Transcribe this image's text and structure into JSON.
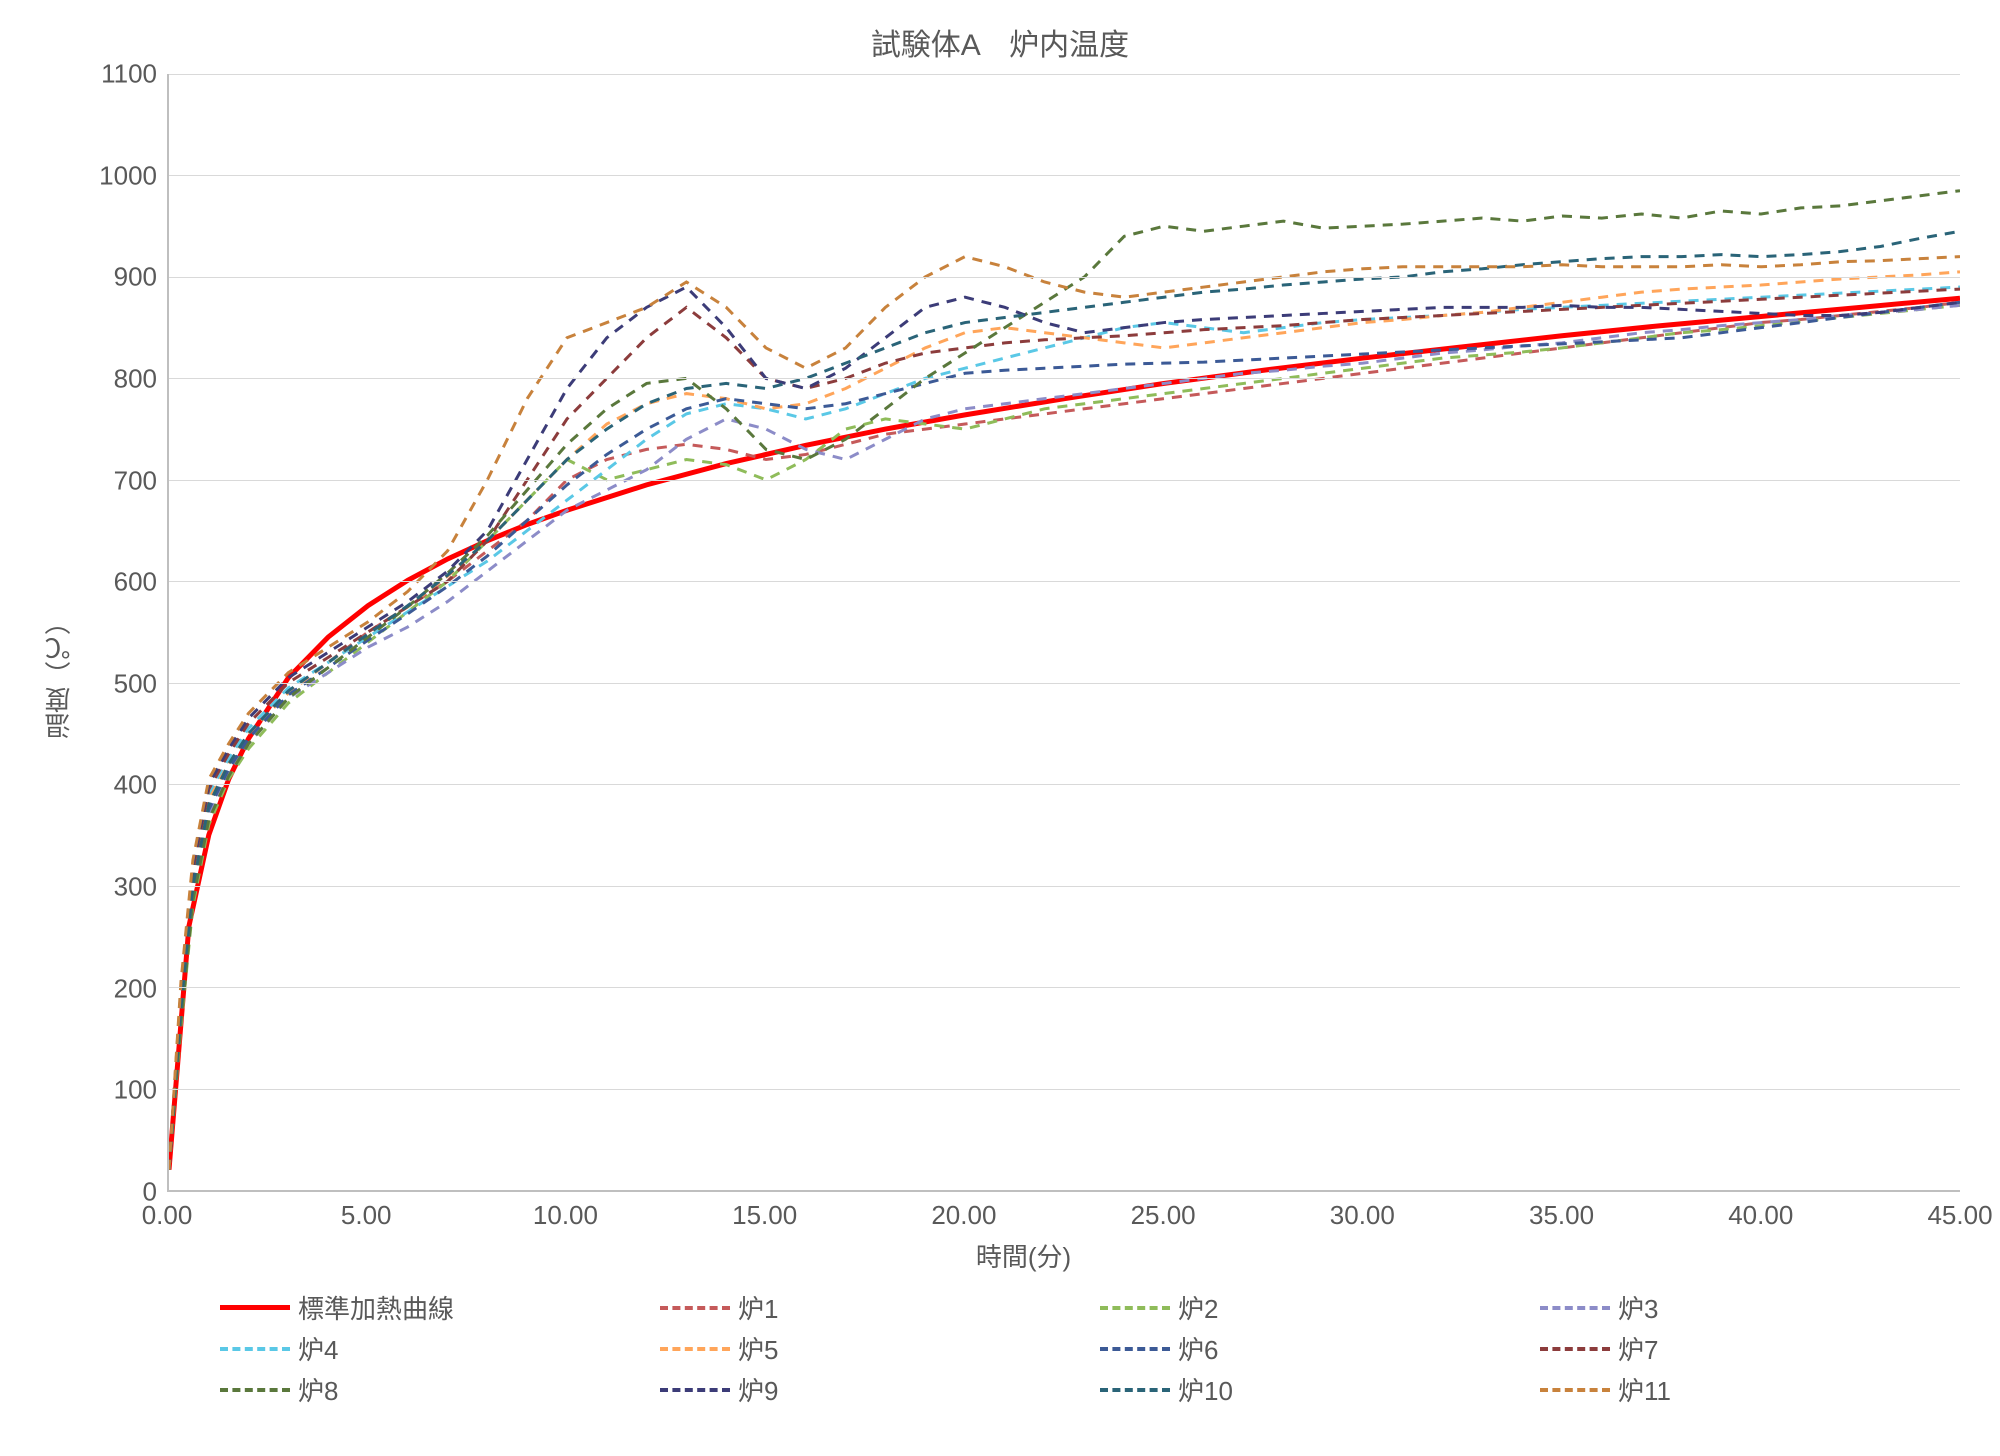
{
  "chart": {
    "type": "line",
    "title": "試験体A　炉内温度",
    "xlabel": "時間(分)",
    "ylabel": "温度（℃）",
    "xlim": [
      0,
      45
    ],
    "ylim": [
      0,
      1100
    ],
    "xtick_step": 5,
    "ytick_step": 100,
    "xtick_format": "fixed2",
    "background_color": "#ffffff",
    "grid_color": "#d9d9d9",
    "axis_color": "#bfbfbf",
    "title_fontsize": 30,
    "label_fontsize": 26,
    "tick_fontsize": 26,
    "text_color": "#595959",
    "series": [
      {
        "name": "標準加熱曲線",
        "color": "#ff0000",
        "dashed": false,
        "line_width": 5,
        "x": [
          0,
          0.5,
          1,
          1.5,
          2,
          3,
          4,
          5,
          6,
          7,
          8,
          9,
          10,
          12,
          14,
          16,
          18,
          20,
          22.5,
          25,
          27.5,
          30,
          32.5,
          35,
          37.5,
          40,
          42.5,
          45
        ],
        "y": [
          20,
          260,
          350,
          405,
          445,
          505,
          545,
          576,
          601,
          622,
          640,
          656,
          670,
          695,
          716,
          734,
          750,
          764,
          780,
          795,
          808,
          820,
          831,
          842,
          852,
          861,
          870,
          879
        ]
      },
      {
        "name": "炉1",
        "color": "#c55a5a",
        "dashed": true,
        "line_width": 3,
        "x": [
          0,
          0.3,
          0.6,
          1,
          1.5,
          2,
          3,
          4,
          5,
          6,
          7,
          8,
          9,
          10,
          11,
          12,
          13,
          14,
          15,
          16,
          17,
          18,
          19,
          20,
          21,
          22,
          23,
          24,
          25,
          26,
          27,
          28,
          29,
          30,
          31,
          32,
          33,
          34,
          35,
          36,
          37,
          38,
          39,
          40,
          41,
          42,
          43,
          44,
          45
        ],
        "y": [
          20,
          180,
          300,
          380,
          420,
          450,
          490,
          520,
          550,
          575,
          600,
          630,
          660,
          700,
          720,
          730,
          735,
          730,
          720,
          725,
          735,
          745,
          750,
          755,
          760,
          765,
          770,
          775,
          780,
          785,
          790,
          795,
          800,
          805,
          810,
          815,
          820,
          825,
          830,
          835,
          840,
          845,
          850,
          855,
          858,
          862,
          866,
          870,
          875
        ]
      },
      {
        "name": "炉2",
        "color": "#8fbc5a",
        "dashed": true,
        "line_width": 3,
        "x": [
          0,
          0.3,
          0.6,
          1,
          1.5,
          2,
          3,
          4,
          5,
          6,
          7,
          8,
          9,
          10,
          11,
          12,
          13,
          14,
          15,
          16,
          17,
          18,
          19,
          20,
          21,
          22,
          23,
          24,
          25,
          26,
          27,
          28,
          29,
          30,
          31,
          32,
          33,
          34,
          35,
          36,
          37,
          38,
          39,
          40,
          41,
          42,
          43,
          44,
          45
        ],
        "y": [
          20,
          160,
          280,
          360,
          405,
          435,
          480,
          510,
          540,
          570,
          600,
          640,
          680,
          720,
          700,
          710,
          720,
          715,
          700,
          720,
          750,
          760,
          755,
          750,
          760,
          770,
          775,
          780,
          785,
          790,
          795,
          800,
          805,
          810,
          815,
          820,
          823,
          826,
          830,
          835,
          840,
          845,
          848,
          852,
          856,
          860,
          864,
          868,
          872
        ]
      },
      {
        "name": "炉3",
        "color": "#8c8cc8",
        "dashed": true,
        "line_width": 3,
        "x": [
          0,
          0.3,
          0.6,
          1,
          1.5,
          2,
          3,
          4,
          5,
          6,
          7,
          8,
          9,
          10,
          11,
          12,
          13,
          14,
          15,
          16,
          17,
          18,
          19,
          20,
          21,
          22,
          23,
          24,
          25,
          26,
          27,
          28,
          29,
          30,
          31,
          32,
          33,
          34,
          35,
          36,
          37,
          38,
          39,
          40,
          41,
          42,
          43,
          44,
          45
        ],
        "y": [
          20,
          170,
          290,
          370,
          410,
          440,
          485,
          510,
          535,
          555,
          580,
          610,
          640,
          670,
          690,
          710,
          740,
          760,
          750,
          730,
          720,
          740,
          760,
          770,
          775,
          780,
          785,
          790,
          795,
          800,
          805,
          808,
          812,
          815,
          820,
          825,
          828,
          832,
          835,
          840,
          845,
          848,
          852,
          855,
          858,
          862,
          865,
          868,
          872
        ]
      },
      {
        "name": "炉4",
        "color": "#5ac8e6",
        "dashed": true,
        "line_width": 3,
        "x": [
          0,
          0.3,
          0.6,
          1,
          1.5,
          2,
          3,
          4,
          5,
          6,
          7,
          8,
          9,
          10,
          11,
          12,
          13,
          14,
          15,
          16,
          17,
          18,
          19,
          20,
          21,
          22,
          23,
          24,
          25,
          26,
          27,
          28,
          29,
          30,
          31,
          32,
          33,
          34,
          35,
          36,
          37,
          38,
          39,
          40,
          41,
          42,
          43,
          44,
          45
        ],
        "y": [
          20,
          190,
          310,
          390,
          425,
          455,
          495,
          520,
          545,
          570,
          595,
          620,
          650,
          680,
          710,
          740,
          765,
          775,
          770,
          760,
          770,
          785,
          800,
          810,
          820,
          830,
          840,
          850,
          855,
          850,
          845,
          850,
          855,
          858,
          860,
          862,
          865,
          868,
          870,
          872,
          874,
          876,
          878,
          880,
          882,
          884,
          886,
          888,
          890
        ]
      },
      {
        "name": "炉5",
        "color": "#ffa55a",
        "dashed": true,
        "line_width": 3,
        "x": [
          0,
          0.3,
          0.6,
          1,
          1.5,
          2,
          3,
          4,
          5,
          6,
          7,
          8,
          9,
          10,
          11,
          12,
          13,
          14,
          15,
          16,
          17,
          18,
          19,
          20,
          21,
          22,
          23,
          24,
          25,
          26,
          27,
          28,
          29,
          30,
          31,
          32,
          33,
          34,
          35,
          36,
          37,
          38,
          39,
          40,
          41,
          42,
          43,
          44,
          45
        ],
        "y": [
          20,
          185,
          305,
          385,
          420,
          450,
          490,
          520,
          548,
          575,
          605,
          640,
          680,
          720,
          755,
          775,
          785,
          780,
          770,
          775,
          790,
          810,
          830,
          845,
          850,
          845,
          840,
          835,
          830,
          835,
          840,
          845,
          850,
          855,
          858,
          862,
          865,
          870,
          875,
          880,
          885,
          888,
          890,
          892,
          895,
          898,
          900,
          902,
          905
        ]
      },
      {
        "name": "炉6",
        "color": "#3c5a96",
        "dashed": true,
        "line_width": 3,
        "x": [
          0,
          0.3,
          0.6,
          1,
          1.5,
          2,
          3,
          4,
          5,
          6,
          7,
          8,
          9,
          10,
          11,
          12,
          13,
          14,
          15,
          16,
          17,
          18,
          19,
          20,
          21,
          22,
          23,
          24,
          25,
          26,
          27,
          28,
          29,
          30,
          31,
          32,
          33,
          34,
          35,
          36,
          37,
          38,
          39,
          40,
          41,
          42,
          43,
          44,
          45
        ],
        "y": [
          20,
          175,
          295,
          375,
          415,
          445,
          488,
          515,
          542,
          568,
          595,
          625,
          660,
          695,
          725,
          750,
          770,
          780,
          775,
          770,
          775,
          785,
          795,
          805,
          808,
          810,
          812,
          814,
          815,
          816,
          818,
          820,
          822,
          824,
          826,
          828,
          830,
          832,
          834,
          836,
          838,
          840,
          845,
          850,
          855,
          860,
          865,
          870,
          875
        ]
      },
      {
        "name": "炉7",
        "color": "#8c3c3c",
        "dashed": true,
        "line_width": 3,
        "x": [
          0,
          0.3,
          0.6,
          1,
          1.5,
          2,
          3,
          4,
          5,
          6,
          7,
          8,
          9,
          10,
          11,
          12,
          13,
          14,
          15,
          16,
          17,
          18,
          19,
          20,
          21,
          22,
          23,
          24,
          25,
          26,
          27,
          28,
          29,
          30,
          31,
          32,
          33,
          34,
          35,
          36,
          37,
          38,
          39,
          40,
          41,
          42,
          43,
          44,
          45
        ],
        "y": [
          20,
          195,
          315,
          395,
          430,
          460,
          500,
          525,
          550,
          575,
          600,
          640,
          700,
          760,
          800,
          840,
          870,
          840,
          800,
          790,
          800,
          815,
          825,
          830,
          835,
          838,
          840,
          842,
          845,
          848,
          850,
          852,
          855,
          858,
          860,
          862,
          864,
          866,
          868,
          870,
          872,
          874,
          876,
          878,
          880,
          882,
          884,
          886,
          888
        ]
      },
      {
        "name": "炉8",
        "color": "#5a783c",
        "dashed": true,
        "line_width": 3,
        "x": [
          0,
          0.3,
          0.6,
          1,
          1.5,
          2,
          3,
          4,
          5,
          6,
          7,
          8,
          9,
          10,
          11,
          12,
          13,
          14,
          15,
          16,
          17,
          18,
          19,
          20,
          21,
          22,
          23,
          24,
          25,
          26,
          27,
          28,
          29,
          30,
          31,
          32,
          33,
          34,
          35,
          36,
          37,
          38,
          39,
          40,
          41,
          42,
          43,
          44,
          45
        ],
        "y": [
          20,
          165,
          285,
          365,
          408,
          440,
          485,
          515,
          545,
          575,
          608,
          645,
          690,
          735,
          770,
          795,
          800,
          770,
          730,
          720,
          740,
          770,
          800,
          825,
          850,
          875,
          900,
          940,
          950,
          945,
          950,
          955,
          948,
          950,
          952,
          955,
          958,
          955,
          960,
          958,
          962,
          958,
          965,
          962,
          968,
          970,
          975,
          980,
          985
        ]
      },
      {
        "name": "炉9",
        "color": "#3c3c78",
        "dashed": true,
        "line_width": 3,
        "x": [
          0,
          0.3,
          0.6,
          1,
          1.5,
          2,
          3,
          4,
          5,
          6,
          7,
          8,
          9,
          10,
          11,
          12,
          13,
          14,
          15,
          16,
          17,
          18,
          19,
          20,
          21,
          22,
          23,
          24,
          25,
          26,
          27,
          28,
          29,
          30,
          31,
          32,
          33,
          34,
          35,
          36,
          37,
          38,
          39,
          40,
          41,
          42,
          43,
          44,
          45
        ],
        "y": [
          20,
          200,
          320,
          400,
          435,
          465,
          505,
          530,
          555,
          580,
          610,
          650,
          720,
          790,
          840,
          870,
          890,
          850,
          800,
          790,
          810,
          840,
          870,
          880,
          870,
          855,
          845,
          850,
          855,
          858,
          860,
          862,
          864,
          866,
          868,
          870,
          870,
          870,
          872,
          870,
          870,
          868,
          866,
          864,
          862,
          862,
          865,
          870,
          875
        ]
      },
      {
        "name": "炉10",
        "color": "#2a6478",
        "dashed": true,
        "line_width": 3,
        "x": [
          0,
          0.3,
          0.6,
          1,
          1.5,
          2,
          3,
          4,
          5,
          6,
          7,
          8,
          9,
          10,
          11,
          12,
          13,
          14,
          15,
          16,
          17,
          18,
          19,
          20,
          21,
          22,
          23,
          24,
          25,
          26,
          27,
          28,
          29,
          30,
          31,
          32,
          33,
          34,
          35,
          36,
          37,
          38,
          39,
          40,
          41,
          42,
          43,
          44,
          45
        ],
        "y": [
          20,
          180,
          300,
          380,
          420,
          450,
          492,
          520,
          548,
          576,
          606,
          640,
          680,
          720,
          750,
          775,
          790,
          795,
          790,
          800,
          815,
          830,
          845,
          855,
          860,
          865,
          870,
          875,
          880,
          885,
          888,
          892,
          895,
          898,
          900,
          905,
          908,
          912,
          915,
          918,
          920,
          920,
          922,
          920,
          922,
          925,
          930,
          938,
          945
        ]
      },
      {
        "name": "炉11",
        "color": "#c8823c",
        "dashed": true,
        "line_width": 3,
        "x": [
          0,
          0.3,
          0.6,
          1,
          1.5,
          2,
          3,
          4,
          5,
          6,
          7,
          8,
          9,
          10,
          11,
          12,
          13,
          14,
          15,
          16,
          17,
          18,
          19,
          20,
          21,
          22,
          23,
          24,
          25,
          26,
          27,
          28,
          29,
          30,
          31,
          32,
          33,
          34,
          35,
          36,
          37,
          38,
          39,
          40,
          41,
          42,
          43,
          44,
          45
        ],
        "y": [
          20,
          205,
          325,
          405,
          440,
          470,
          510,
          535,
          560,
          590,
          630,
          700,
          780,
          840,
          855,
          870,
          895,
          870,
          830,
          810,
          830,
          870,
          900,
          920,
          910,
          895,
          885,
          880,
          885,
          890,
          895,
          900,
          905,
          908,
          910,
          910,
          910,
          910,
          912,
          910,
          910,
          910,
          912,
          910,
          912,
          915,
          916,
          918,
          920
        ]
      }
    ]
  }
}
